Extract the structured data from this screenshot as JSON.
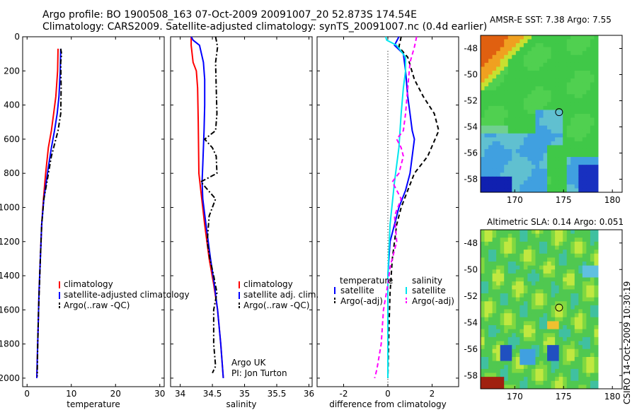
{
  "header": {
    "line1": "Argo profile: BO 1900508_163 07-Oct-2009 20091007_20 52.873S 174.54E",
    "line2": "Climatology: CARS2009. Satellite-adjusted climatology: synTS_20091007.nc (0.4d earlier)"
  },
  "credit": {
    "line1": "Argo UK",
    "line2": "PI: Jon Turton"
  },
  "stamp": "CSIRO 14-Oct-2009 10:30:19",
  "colors": {
    "red": "#ff0000",
    "blue": "#0000ff",
    "black": "#000000",
    "cyan": "#00e5ee",
    "magenta": "#ff00ff"
  },
  "maps": [
    {
      "title": "AMSR-E SST: 7.38 Argo: 7.55",
      "x_ticks": [
        "170",
        "175",
        "180"
      ],
      "y_ticks": [
        "-48",
        "-50",
        "-52",
        "-54",
        "-56",
        "-58"
      ],
      "marker": {
        "lon": 174.54,
        "lat": -52.873
      }
    },
    {
      "title": "Altimetric SLA: 0.14 Argo: 0.051",
      "x_ticks": [
        "170",
        "175",
        "180"
      ],
      "y_ticks": [
        "-48",
        "-50",
        "-52",
        "-54",
        "-56",
        "-58"
      ],
      "marker": {
        "lon": 174.54,
        "lat": -52.873
      }
    }
  ],
  "chart_data": [
    {
      "type": "line",
      "xlabel": "temperature",
      "ylabel": "",
      "xlim": [
        -1,
        31
      ],
      "ylim": [
        2050,
        0
      ],
      "x_ticks": [
        "0",
        "10",
        "20",
        "30"
      ],
      "y_ticks": [
        "0",
        "200",
        "400",
        "600",
        "800",
        "1000",
        "1200",
        "1400",
        "1600",
        "1800",
        "2000"
      ],
      "legend": [
        "climatology",
        "satellite-adjusted climatology",
        "Argo(..raw -QC)"
      ],
      "series": [
        {
          "name": "climatology",
          "color": "red",
          "style": "solid",
          "points": [
            [
              7.0,
              70
            ],
            [
              6.9,
              200
            ],
            [
              6.5,
              350
            ],
            [
              6.0,
              450
            ],
            [
              5.5,
              550
            ],
            [
              4.8,
              650
            ],
            [
              4.2,
              800
            ],
            [
              3.7,
              950
            ],
            [
              3.3,
              1100
            ],
            [
              3.0,
              1300
            ],
            [
              2.7,
              1500
            ],
            [
              2.5,
              1700
            ],
            [
              2.3,
              1900
            ],
            [
              2.2,
              2000
            ]
          ]
        },
        {
          "name": "satellite-adjusted climatology",
          "color": "blue",
          "style": "solid",
          "points": [
            [
              7.6,
              70
            ],
            [
              7.5,
              200
            ],
            [
              7.2,
              350
            ],
            [
              6.8,
              450
            ],
            [
              6.2,
              550
            ],
            [
              5.5,
              650
            ],
            [
              4.6,
              800
            ],
            [
              3.8,
              950
            ],
            [
              3.3,
              1100
            ],
            [
              3.0,
              1300
            ],
            [
              2.7,
              1500
            ],
            [
              2.5,
              1700
            ],
            [
              2.3,
              1900
            ],
            [
              2.2,
              2000
            ]
          ]
        },
        {
          "name": "Argo(..raw -QC)",
          "color": "black",
          "style": "dashdot",
          "points": [
            [
              7.6,
              70
            ],
            [
              7.8,
              100
            ],
            [
              7.6,
              150
            ],
            [
              7.7,
              300
            ],
            [
              7.6,
              450
            ],
            [
              7.0,
              550
            ],
            [
              6.5,
              600
            ],
            [
              5.5,
              700
            ],
            [
              4.5,
              850
            ],
            [
              3.8,
              950
            ],
            [
              3.3,
              1100
            ],
            [
              3.0,
              1300
            ],
            [
              2.8,
              1450
            ],
            [
              2.6,
              1600
            ],
            [
              2.4,
              1800
            ],
            [
              2.3,
              1990
            ]
          ]
        }
      ]
    },
    {
      "type": "line",
      "xlabel": "salinity",
      "ylabel": "",
      "xlim": [
        33.85,
        36.05
      ],
      "ylim": [
        2050,
        0
      ],
      "x_ticks": [
        "34",
        "34.5",
        "35",
        "35.5",
        "36"
      ],
      "y_ticks": [],
      "legend": [
        "climatology",
        "satellite adj. clim.",
        "Argo(..raw -QC)"
      ],
      "series": [
        {
          "name": "climatology",
          "color": "red",
          "style": "solid",
          "points": [
            [
              34.17,
              0
            ],
            [
              34.17,
              50
            ],
            [
              34.2,
              150
            ],
            [
              34.25,
              200
            ],
            [
              34.27,
              300
            ],
            [
              34.28,
              500
            ],
            [
              34.29,
              800
            ],
            [
              34.32,
              900
            ],
            [
              34.38,
              1100
            ],
            [
              34.45,
              1300
            ],
            [
              34.52,
              1450
            ],
            [
              34.58,
              1600
            ],
            [
              34.63,
              1800
            ],
            [
              34.67,
              2000
            ]
          ]
        },
        {
          "name": "satellite adj. clim.",
          "color": "blue",
          "style": "solid",
          "points": [
            [
              34.17,
              0
            ],
            [
              34.2,
              20
            ],
            [
              34.3,
              50
            ],
            [
              34.36,
              150
            ],
            [
              34.38,
              250
            ],
            [
              34.38,
              400
            ],
            [
              34.37,
              550
            ],
            [
              34.36,
              650
            ],
            [
              34.35,
              750
            ],
            [
              34.34,
              850
            ],
            [
              34.35,
              950
            ],
            [
              34.4,
              1100
            ],
            [
              34.47,
              1300
            ],
            [
              34.53,
              1450
            ],
            [
              34.58,
              1600
            ],
            [
              34.63,
              1800
            ],
            [
              34.67,
              2000
            ]
          ]
        },
        {
          "name": "Argo(..raw -QC)",
          "color": "black",
          "style": "dashdot",
          "points": [
            [
              34.55,
              0
            ],
            [
              34.58,
              60
            ],
            [
              34.55,
              150
            ],
            [
              34.56,
              300
            ],
            [
              34.57,
              450
            ],
            [
              34.55,
              550
            ],
            [
              34.38,
              600
            ],
            [
              34.5,
              650
            ],
            [
              34.56,
              700
            ],
            [
              34.57,
              800
            ],
            [
              34.32,
              850
            ],
            [
              34.55,
              950
            ],
            [
              34.45,
              1050
            ],
            [
              34.42,
              1200
            ],
            [
              34.46,
              1300
            ],
            [
              34.52,
              1400
            ],
            [
              34.57,
              1500
            ],
            [
              34.52,
              1600
            ],
            [
              34.52,
              1800
            ],
            [
              34.55,
              1930
            ],
            [
              34.5,
              1970
            ]
          ]
        }
      ]
    },
    {
      "type": "line",
      "xlabel": "difference from climatology",
      "ylabel": "",
      "xlim": [
        -3.2,
        3.2
      ],
      "ylim": [
        2050,
        0
      ],
      "x_ticks": [
        "-2",
        "0",
        "2"
      ],
      "y_ticks": [],
      "legend_groups": [
        {
          "title": "temperature",
          "items": [
            "satellite",
            "Argo(-adj)"
          ]
        },
        {
          "title": "salinity",
          "items": [
            "satellite",
            "Argo(-adj)"
          ]
        }
      ],
      "series": [
        {
          "name": "temperature satellite",
          "color": "blue",
          "style": "solid",
          "points": [
            [
              0.5,
              0
            ],
            [
              0.3,
              50
            ],
            [
              0.7,
              100
            ],
            [
              0.8,
              200
            ],
            [
              0.9,
              350
            ],
            [
              1.0,
              450
            ],
            [
              1.1,
              550
            ],
            [
              1.2,
              600
            ],
            [
              1.1,
              700
            ],
            [
              1.0,
              800
            ],
            [
              0.8,
              900
            ],
            [
              0.5,
              1000
            ],
            [
              0.3,
              1100
            ],
            [
              0.1,
              1200
            ],
            [
              0,
              1400
            ],
            [
              0,
              2000
            ]
          ]
        },
        {
          "name": "temperature Argo(-adj)",
          "color": "black",
          "style": "dashed",
          "points": [
            [
              0.6,
              0
            ],
            [
              0.5,
              60
            ],
            [
              0.9,
              120
            ],
            [
              1.2,
              250
            ],
            [
              1.6,
              350
            ],
            [
              2.1,
              450
            ],
            [
              2.3,
              550
            ],
            [
              1.8,
              700
            ],
            [
              1.2,
              800
            ],
            [
              0.9,
              900
            ],
            [
              0.6,
              1000
            ],
            [
              0.4,
              1100
            ],
            [
              0.3,
              1200
            ],
            [
              0.2,
              1300
            ],
            [
              0.1,
              1500
            ],
            [
              0.05,
              1700
            ],
            [
              0,
              2000
            ]
          ]
        },
        {
          "name": "salinity satellite",
          "color": "cyan",
          "style": "solid",
          "points": [
            [
              -0.1,
              0
            ],
            [
              -0.05,
              20
            ],
            [
              0.4,
              50
            ],
            [
              0.8,
              120
            ],
            [
              0.8,
              200
            ],
            [
              0.7,
              300
            ],
            [
              0.6,
              450
            ],
            [
              0.5,
              650
            ],
            [
              0.3,
              850
            ],
            [
              0.1,
              1100
            ],
            [
              0,
              1400
            ],
            [
              0,
              2000
            ]
          ]
        },
        {
          "name": "salinity Argo(-adj)",
          "color": "magenta",
          "style": "dashed",
          "points": [
            [
              1.3,
              0
            ],
            [
              1.2,
              60
            ],
            [
              1.0,
              150
            ],
            [
              0.9,
              300
            ],
            [
              0.8,
              450
            ],
            [
              0.7,
              550
            ],
            [
              0.4,
              600
            ],
            [
              0.6,
              650
            ],
            [
              0.7,
              700
            ],
            [
              0.5,
              800
            ],
            [
              0.2,
              850
            ],
            [
              0.6,
              950
            ],
            [
              0.3,
              1050
            ],
            [
              0.4,
              1200
            ],
            [
              0.1,
              1350
            ],
            [
              0,
              1450
            ],
            [
              -0.2,
              1600
            ],
            [
              -0.3,
              1800
            ],
            [
              -0.5,
              1950
            ],
            [
              -0.6,
              2000
            ]
          ]
        }
      ]
    }
  ]
}
